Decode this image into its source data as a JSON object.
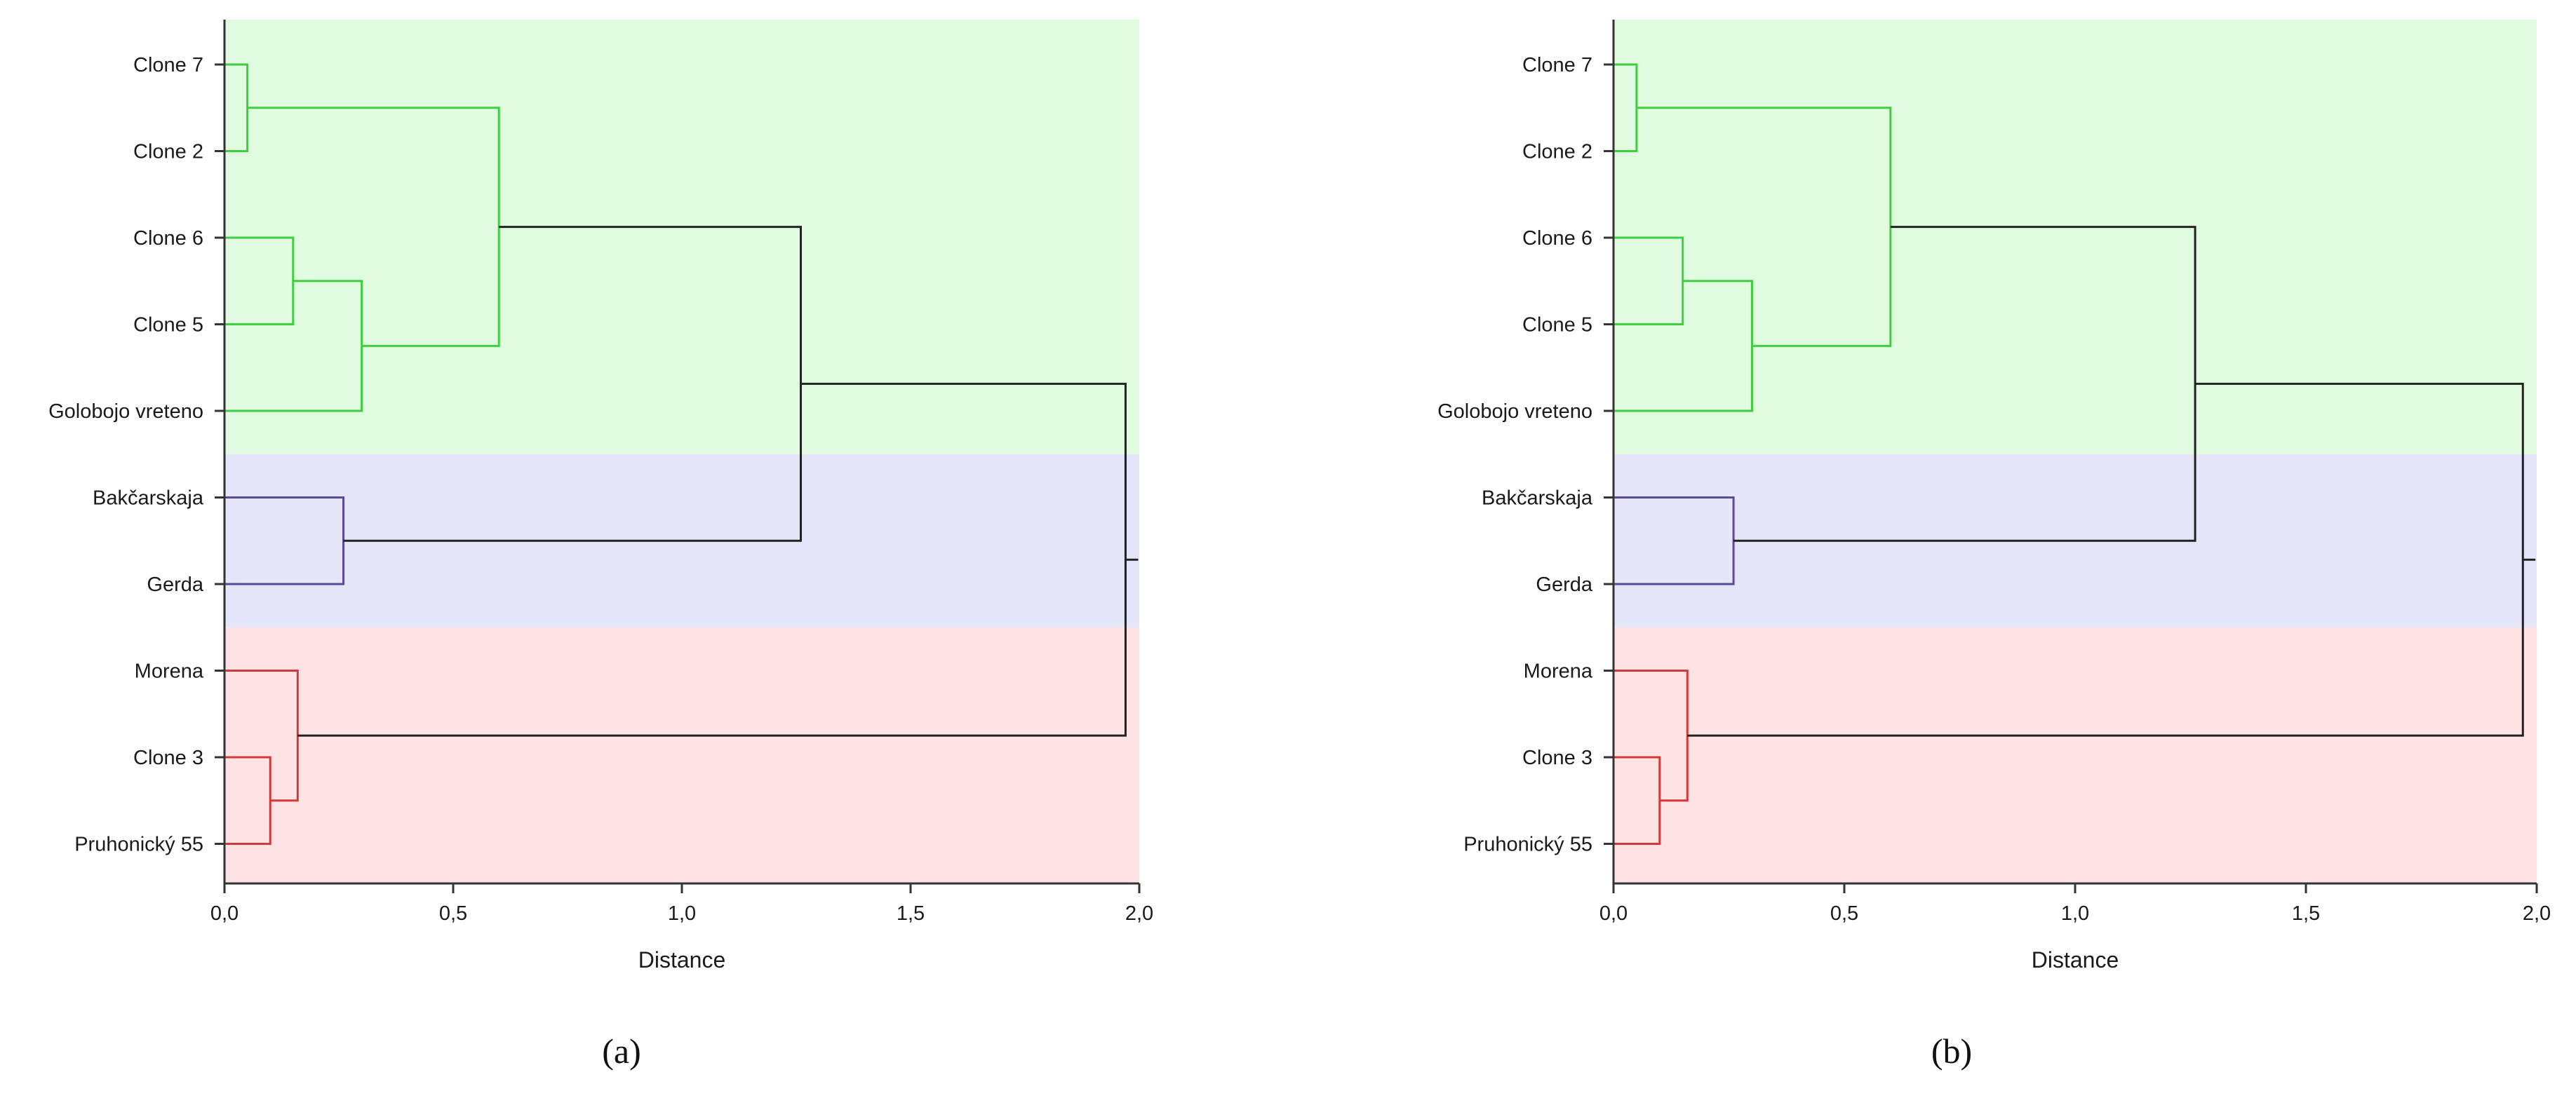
{
  "chart_data": [
    {
      "type": "dendrogram",
      "panel_label": "(a)",
      "xlabel": "Distance",
      "xlim": [
        0,
        2
      ],
      "xticks": [
        0,
        0.5,
        1.0,
        1.5,
        2.0
      ],
      "xtick_labels": [
        "0,0",
        "0,5",
        "1,0",
        "1,5",
        "2,0"
      ],
      "leaves": [
        "Clone 7",
        "Clone 2",
        "Clone 6",
        "Clone 5",
        "Golobojo vreteno",
        "Bakčarskaja",
        "Gerda",
        "Morena",
        "Clone 3",
        "Pruhonický 55"
      ],
      "clusters": [
        {
          "color": "#3ecf3e",
          "background": "#e0fbe0",
          "members": [
            "Clone 7",
            "Clone 2",
            "Clone 6",
            "Clone 5",
            "Golobojo vreteno"
          ]
        },
        {
          "color": "#5a4a98",
          "background": "#e6e6fb",
          "members": [
            "Bakčarskaja",
            "Gerda"
          ]
        },
        {
          "color": "#d23a3a",
          "background": "#fde3e3",
          "members": [
            "Morena",
            "Clone 3",
            "Pruhonický 55"
          ]
        }
      ],
      "merges": [
        {
          "left": "Clone 7",
          "right": "Clone 2",
          "distance": 0.05,
          "color": "#3ecf3e"
        },
        {
          "left": "Clone 6",
          "right": "Clone 5",
          "distance": 0.15,
          "color": "#3ecf3e"
        },
        {
          "left": "Clone 6|Clone 5",
          "right": "Golobojo vreteno",
          "distance": 0.3,
          "color": "#3ecf3e"
        },
        {
          "left": "Clone 7|Clone 2",
          "right": "Clone 6|Clone 5|Golobojo vreteno",
          "distance": 0.6,
          "color": "#3ecf3e"
        },
        {
          "left": "Bakčarskaja",
          "right": "Gerda",
          "distance": 0.26,
          "color": "#5a4a98"
        },
        {
          "left": "Clone 7|Clone 2|Clone 6|Clone 5|Golobojo vreteno",
          "right": "Bakčarskaja|Gerda",
          "distance": 1.26,
          "color": "#222222"
        },
        {
          "left": "Clone 3",
          "right": "Pruhonický 55",
          "distance": 0.1,
          "color": "#d23a3a"
        },
        {
          "left": "Morena",
          "right": "Clone 3|Pruhonický 55",
          "distance": 0.16,
          "color": "#d23a3a"
        },
        {
          "left": "Clone 7|Clone 2|Clone 6|Clone 5|Golobojo vreteno|Bakčarskaja|Gerda",
          "right": "Morena|Clone 3|Pruhonický 55",
          "distance": 1.97,
          "color": "#222222"
        }
      ]
    },
    {
      "type": "dendrogram",
      "panel_label": "(b)",
      "xlabel": "Distance",
      "xlim": [
        0,
        2
      ],
      "xticks": [
        0,
        0.5,
        1.0,
        1.5,
        2.0
      ],
      "xtick_labels": [
        "0,0",
        "0,5",
        "1,0",
        "1,5",
        "2,0"
      ],
      "leaves": [
        "Clone 7",
        "Clone 2",
        "Clone 6",
        "Clone 5",
        "Golobojo vreteno",
        "Bakčarskaja",
        "Gerda",
        "Morena",
        "Clone 3",
        "Pruhonický 55"
      ],
      "clusters": [
        {
          "color": "#3ecf3e",
          "background": "#e0fbe0",
          "members": [
            "Clone 7",
            "Clone 2",
            "Clone 6",
            "Clone 5",
            "Golobojo vreteno"
          ]
        },
        {
          "color": "#5a4a98",
          "background": "#e6e6fb",
          "members": [
            "Bakčarskaja",
            "Gerda"
          ]
        },
        {
          "color": "#d23a3a",
          "background": "#fde3e3",
          "members": [
            "Morena",
            "Clone 3",
            "Pruhonický 55"
          ]
        }
      ],
      "merges": [
        {
          "left": "Clone 7",
          "right": "Clone 2",
          "distance": 0.05,
          "color": "#3ecf3e"
        },
        {
          "left": "Clone 6",
          "right": "Clone 5",
          "distance": 0.15,
          "color": "#3ecf3e"
        },
        {
          "left": "Clone 6|Clone 5",
          "right": "Golobojo vreteno",
          "distance": 0.3,
          "color": "#3ecf3e"
        },
        {
          "left": "Clone 7|Clone 2",
          "right": "Clone 6|Clone 5|Golobojo vreteno",
          "distance": 0.6,
          "color": "#3ecf3e"
        },
        {
          "left": "Bakčarskaja",
          "right": "Gerda",
          "distance": 0.26,
          "color": "#5a4a98"
        },
        {
          "left": "Clone 7|Clone 2|Clone 6|Clone 5|Golobojo vreteno",
          "right": "Bakčarskaja|Gerda",
          "distance": 1.26,
          "color": "#222222"
        },
        {
          "left": "Clone 3",
          "right": "Pruhonický 55",
          "distance": 0.1,
          "color": "#d23a3a"
        },
        {
          "left": "Morena",
          "right": "Clone 3|Pruhonický 55",
          "distance": 0.16,
          "color": "#d23a3a"
        },
        {
          "left": "Clone 7|Clone 2|Clone 6|Clone 5|Golobojo vreteno|Bakčarskaja|Gerda",
          "right": "Morena|Clone 3|Pruhonický 55",
          "distance": 1.97,
          "color": "#222222"
        }
      ]
    }
  ]
}
